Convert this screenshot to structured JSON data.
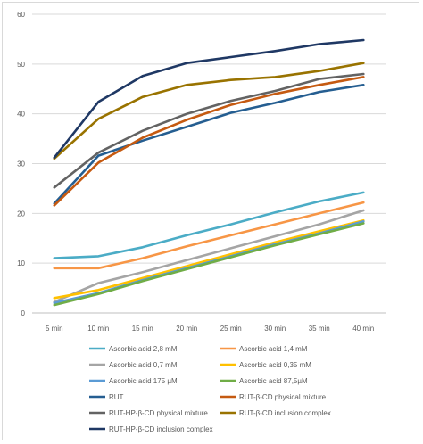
{
  "chart_data": {
    "type": "line",
    "categories": [
      "5 min",
      "10 min",
      "15 min",
      "20 min",
      "25 min",
      "30 min",
      "35 min",
      "40 min"
    ],
    "ylim": [
      0,
      60
    ],
    "yticks": [
      0,
      10,
      20,
      30,
      40,
      50,
      60
    ],
    "grid": true,
    "legend_position": "bottom",
    "series": [
      {
        "name": "Ascorbic acid 2,8 mM",
        "color": "#4BACC6",
        "values": [
          11.0,
          11.4,
          13.2,
          15.6,
          17.8,
          20.2,
          22.4,
          24.2
        ]
      },
      {
        "name": "Ascorbic acid 1,4 mM",
        "color": "#F79646",
        "values": [
          9.0,
          9.0,
          11.0,
          13.4,
          15.6,
          17.8,
          20.0,
          22.2
        ]
      },
      {
        "name": "Ascorbic acid 0,7 mM",
        "color": "#A5A5A5",
        "values": [
          2.2,
          6.0,
          8.2,
          10.6,
          13.0,
          15.4,
          17.8,
          20.6
        ]
      },
      {
        "name": "Ascorbic acid 0,35 mM",
        "color": "#FFC000",
        "values": [
          3.0,
          4.6,
          7.0,
          9.4,
          11.8,
          14.2,
          16.4,
          18.6
        ]
      },
      {
        "name": "Ascorbic acid 175 µM",
        "color": "#5B9BD5",
        "values": [
          2.0,
          4.0,
          6.6,
          9.0,
          11.4,
          13.8,
          16.0,
          18.4
        ]
      },
      {
        "name": "Ascorbic acid 87,5µM",
        "color": "#70AD47",
        "values": [
          1.6,
          3.8,
          6.4,
          8.8,
          11.2,
          13.6,
          15.8,
          18.0
        ]
      },
      {
        "name": "RUT",
        "color": "#255E91",
        "values": [
          22.0,
          31.6,
          34.6,
          37.4,
          40.2,
          42.2,
          44.4,
          45.8
        ]
      },
      {
        "name": "RUT-β-CD physical mixture",
        "color": "#C55A11",
        "values": [
          21.6,
          30.2,
          35.2,
          38.8,
          41.8,
          44.0,
          45.8,
          47.4
        ]
      },
      {
        "name": "RUT-HP-β-CD physical mixture",
        "color": "#636363",
        "values": [
          25.2,
          32.2,
          36.6,
          40.0,
          42.6,
          44.6,
          47.0,
          48.0
        ]
      },
      {
        "name": "RUT-β-CD inclusion complex",
        "color": "#997300",
        "values": [
          31.0,
          39.0,
          43.4,
          45.8,
          46.8,
          47.4,
          48.6,
          50.2
        ]
      },
      {
        "name": "RUT-HP-β-CD inclusion complex",
        "color": "#1F3864",
        "values": [
          31.2,
          42.4,
          47.6,
          50.2,
          51.4,
          52.6,
          54.0,
          54.8
        ]
      }
    ]
  }
}
